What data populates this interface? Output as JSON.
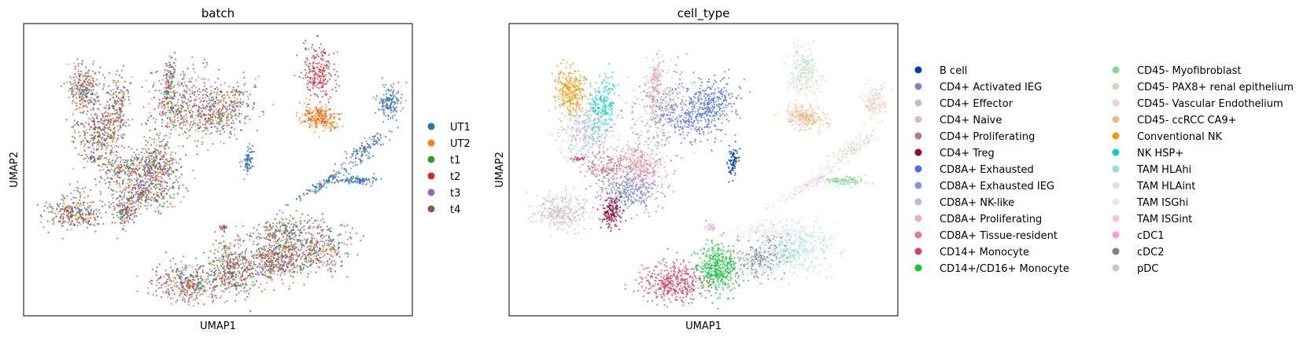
{
  "chart_data": [
    {
      "type": "scatter",
      "title": "batch",
      "xlabel": "UMAP1",
      "ylabel": "UMAP2",
      "legend": {
        "placement": "right",
        "entries": [
          {
            "label": "UT1",
            "color": "#1f77b4"
          },
          {
            "label": "UT2",
            "color": "#ff7f0e"
          },
          {
            "label": "t1",
            "color": "#2ca02c"
          },
          {
            "label": "t2",
            "color": "#d62728"
          },
          {
            "label": "t3",
            "color": "#9467bd"
          },
          {
            "label": "t4",
            "color": "#8c564b"
          }
        ]
      }
    },
    {
      "type": "scatter",
      "title": "cell_type",
      "xlabel": "UMAP1",
      "ylabel": "UMAP2",
      "legend": {
        "placement": "right",
        "columns": 2,
        "entries": [
          {
            "label": "B cell",
            "color": "#023fa5"
          },
          {
            "label": "CD4+ Activated IEG",
            "color": "#7d87b9"
          },
          {
            "label": "CD4+ Effector",
            "color": "#bec1d4"
          },
          {
            "label": "CD4+ Naive",
            "color": "#d6bcc0"
          },
          {
            "label": "CD4+ Proliferating",
            "color": "#bb7784"
          },
          {
            "label": "CD4+ Treg",
            "color": "#8e063b"
          },
          {
            "label": "CD8A+ Exhausted",
            "color": "#4a6fe3"
          },
          {
            "label": "CD8A+ Exhausted IEG",
            "color": "#8595e1"
          },
          {
            "label": "CD8A+ NK-like",
            "color": "#b5bbe3"
          },
          {
            "label": "CD8A+ Proliferating",
            "color": "#e6afb9"
          },
          {
            "label": "CD8A+ Tissue-resident",
            "color": "#e07b91"
          },
          {
            "label": "CD14+ Monocyte",
            "color": "#d33f6a"
          },
          {
            "label": "CD14+/CD16+ Monocyte",
            "color": "#11c638"
          },
          {
            "label": "CD45- Myofibroblast",
            "color": "#8dd593"
          },
          {
            "label": "CD45- PAX8+ renal epithelium",
            "color": "#c6dec7"
          },
          {
            "label": "CD45- Vascular Endothelium",
            "color": "#ead3c6"
          },
          {
            "label": "CD45- ccRCC CA9+",
            "color": "#f0b98d"
          },
          {
            "label": "Conventional NK",
            "color": "#ef9708"
          },
          {
            "label": "NK HSP+",
            "color": "#0fcfc0"
          },
          {
            "label": "TAM HLAhi",
            "color": "#9cded6"
          },
          {
            "label": "TAM HLAint",
            "color": "#d5eae7"
          },
          {
            "label": "TAM ISGhi",
            "color": "#f3e1eb"
          },
          {
            "label": "TAM ISGint",
            "color": "#f6c4e1"
          },
          {
            "label": "cDC1",
            "color": "#f79cd4"
          },
          {
            "label": "cDC2",
            "color": "#7f7f7f"
          },
          {
            "label": "pDC",
            "color": "#c7c7c7"
          }
        ]
      }
    }
  ]
}
